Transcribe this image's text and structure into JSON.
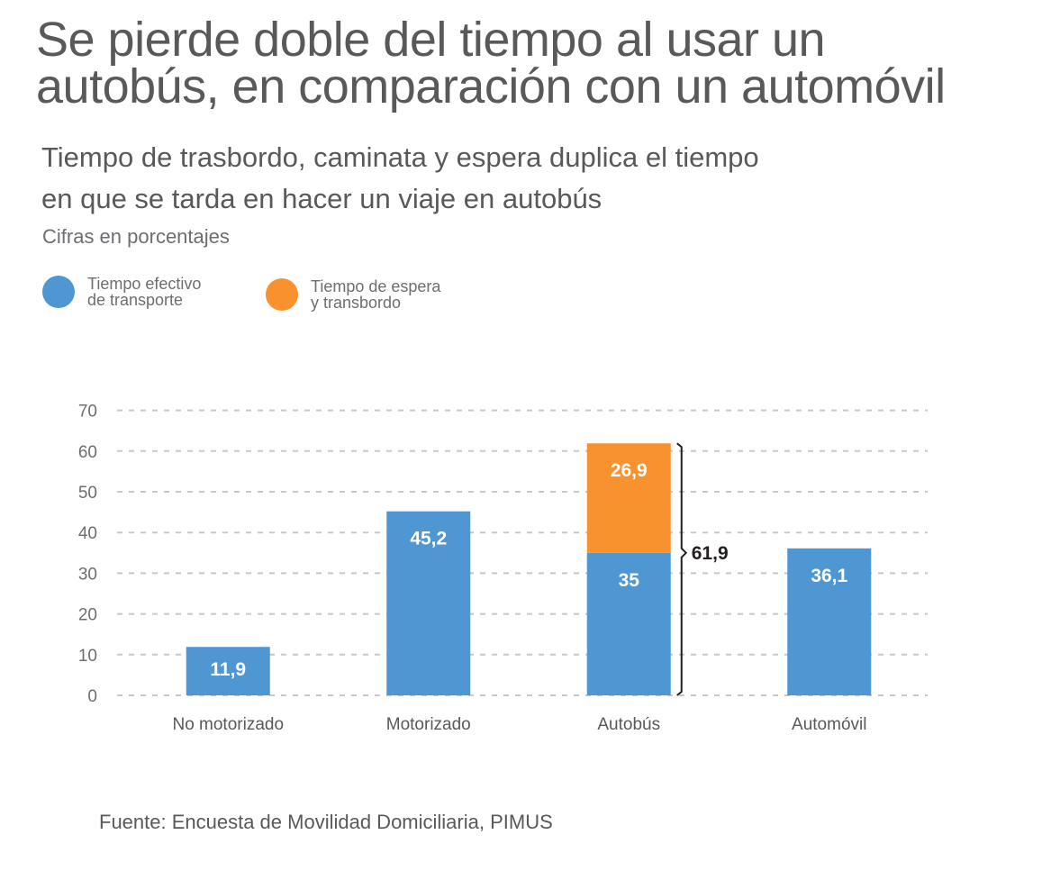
{
  "title": {
    "line1": "Se pierde doble del tiempo al usar un",
    "line2": "autobús, en comparación con un automóvil"
  },
  "subtitle": {
    "line1": "Tiempo de trasbordo, caminata y espera duplica el tiempo",
    "line2": "en que se tarda en hacer un viaje en autobús"
  },
  "note": "Cifras en porcentajes",
  "legend": [
    {
      "line1": "Tiempo efectivo",
      "line2": "de transporte",
      "color": "#4f97d3"
    },
    {
      "line1": "Tiempo de espera",
      "line2": "y transbordo",
      "color": "#f7922e"
    }
  ],
  "source": "Fuente: Encuesta de Movilidad Domiciliaria, PIMUS",
  "chart_data": {
    "type": "bar",
    "stacked": true,
    "categories": [
      "No motorizado",
      "Motorizado",
      "Autobús",
      "Automóvil"
    ],
    "series": [
      {
        "name": "Tiempo efectivo de transporte",
        "values": [
          11.9,
          45.2,
          35,
          36.1
        ],
        "labels": [
          "11,9",
          "45,2",
          "35",
          "36,1"
        ],
        "color": "#4f97d3"
      },
      {
        "name": "Tiempo de espera y transbordo",
        "values": [
          0,
          0,
          26.9,
          0
        ],
        "labels": [
          "",
          "",
          "26,9",
          ""
        ],
        "color": "#f7922e"
      }
    ],
    "total_annotation": {
      "category": "Autobús",
      "value": 61.9,
      "label": "61,9"
    },
    "yticks": [
      "0",
      "10",
      "20",
      "30",
      "40",
      "50",
      "60",
      "70"
    ],
    "ylim": [
      0,
      70
    ],
    "grid": true
  }
}
